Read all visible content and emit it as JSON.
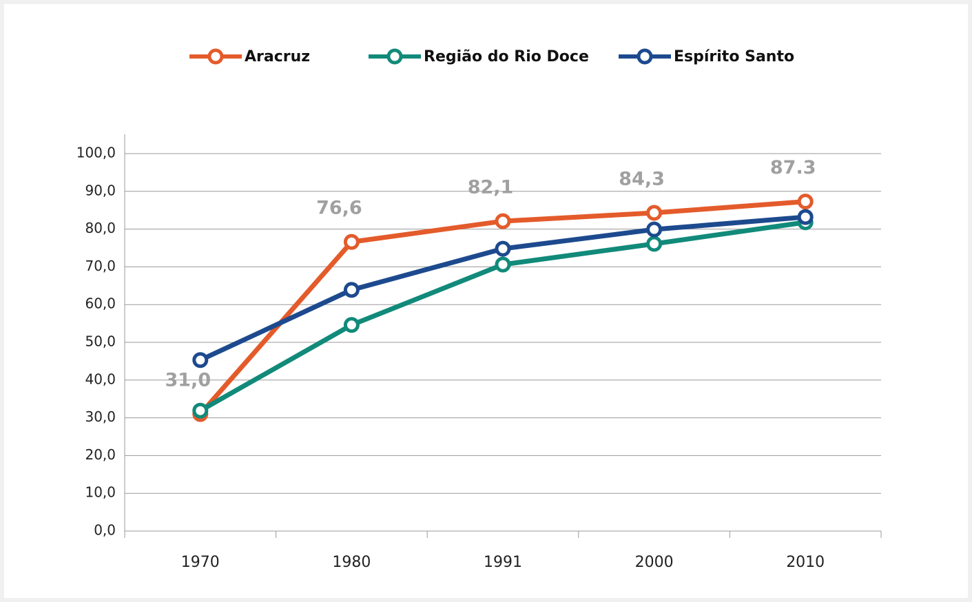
{
  "chart_data": {
    "type": "line",
    "categories": [
      "1970",
      "1980",
      "1991",
      "2000",
      "2010"
    ],
    "series": [
      {
        "name": "Aracruz",
        "color": "#e45b2b",
        "values": [
          31.0,
          76.6,
          82.1,
          84.3,
          87.3
        ],
        "value_labels": [
          "31,0",
          "76,6",
          "82,1",
          "84,3",
          "87.3"
        ]
      },
      {
        "name": "Região do Rio Doce",
        "color": "#118a7a",
        "values": [
          31.9,
          54.6,
          70.6,
          76.1,
          81.8
        ]
      },
      {
        "name": "Espírito Santo",
        "color": "#1d4a8e",
        "values": [
          45.3,
          63.9,
          74.8,
          79.9,
          83.2
        ]
      }
    ],
    "ylim": [
      0,
      100
    ],
    "yticks": [
      {
        "value": 0,
        "label": "0,0"
      },
      {
        "value": 10,
        "label": "10,0"
      },
      {
        "value": 20,
        "label": "20,0"
      },
      {
        "value": 30,
        "label": "30,0"
      },
      {
        "value": 40,
        "label": "40,0"
      },
      {
        "value": 50,
        "label": "50,0"
      },
      {
        "value": 60,
        "label": "60,0"
      },
      {
        "value": 70,
        "label": "70,0"
      },
      {
        "value": 80,
        "label": "80,0"
      },
      {
        "value": 90,
        "label": "90,0"
      },
      {
        "value": 100,
        "label": "100,0"
      }
    ],
    "grid": true,
    "legend": "top"
  }
}
